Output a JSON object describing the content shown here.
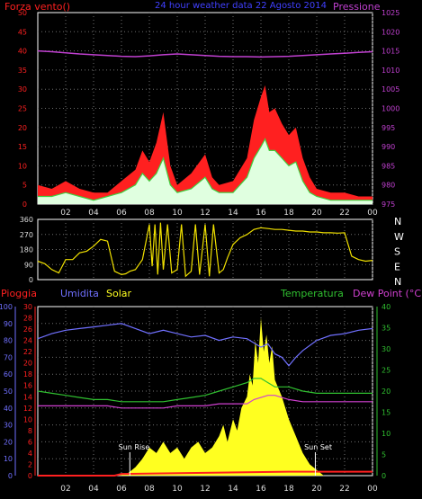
{
  "header": {
    "title": "24 hour weather data  22 Agosto 2014",
    "left_label": "Forza vento()",
    "right_label": "Pressione"
  },
  "colors": {
    "background": "#000000",
    "grid": "#6f6f6f",
    "wind_gust": "#ff2020",
    "wind_avg": "#40d040",
    "wind_light": "#e0ffe0",
    "pressure": "#c040d0",
    "direction": "#f0e000",
    "rain": "#ff2020",
    "humidity": "#7070ff",
    "solar": "#ffff20",
    "temperature": "#30c030",
    "dewpoint": "#d040d0",
    "title": "#4040ff"
  },
  "labels": {
    "pioggia": "Pioggia",
    "umidita": "Umidita",
    "solar": "Solar",
    "temperatura": "Temperatura",
    "dew_point": "Dew Point (°C)",
    "sun_rise": "Sun Rise",
    "sun_set": "Sun Set"
  },
  "x_ticks": [
    "02",
    "04",
    "06",
    "08",
    "10",
    "12",
    "14",
    "16",
    "18",
    "20",
    "22",
    "00"
  ],
  "chart_data": [
    {
      "type": "line",
      "panel": "wind-pressure",
      "xlim": [
        0,
        24
      ],
      "left_axis": {
        "label": "Forza vento()",
        "ylim": [
          0,
          50
        ],
        "ticks": [
          0,
          5,
          10,
          15,
          20,
          25,
          30,
          35,
          40,
          45,
          50
        ]
      },
      "right_axis": {
        "label": "Pressione",
        "ylim": [
          975,
          1025
        ],
        "ticks": [
          975,
          980,
          985,
          990,
          995,
          1000,
          1005,
          1010,
          1015,
          1020,
          1025
        ]
      },
      "series": [
        {
          "name": "Pressione",
          "axis": "right",
          "x": [
            0,
            1,
            2,
            3,
            4,
            5,
            6,
            7,
            8,
            9,
            10,
            11,
            12,
            13,
            14,
            15,
            16,
            17,
            18,
            19,
            20,
            21,
            22,
            23,
            24
          ],
          "y": [
            1015,
            1014.8,
            1014.5,
            1014.2,
            1014,
            1013.8,
            1013.6,
            1013.5,
            1013.7,
            1014,
            1014.2,
            1014,
            1013.8,
            1013.6,
            1013.5,
            1013.5,
            1013.4,
            1013.5,
            1013.6,
            1013.8,
            1014,
            1014.2,
            1014.4,
            1014.6,
            1014.8
          ]
        },
        {
          "name": "gust",
          "axis": "left",
          "x": [
            0,
            1,
            2,
            3,
            4,
            5,
            6,
            7,
            7.5,
            8,
            8.5,
            9,
            9.5,
            10,
            11,
            12,
            12.5,
            13,
            14,
            15,
            15.5,
            16,
            16.3,
            16.6,
            17,
            17.5,
            18,
            18.5,
            19,
            19.5,
            20,
            21,
            22,
            23,
            24
          ],
          "y": [
            5,
            4,
            6,
            4,
            3,
            3,
            6,
            9,
            14,
            11,
            16,
            24,
            10,
            5,
            8,
            13,
            7,
            5,
            6,
            12,
            22,
            28,
            31,
            24,
            25,
            21,
            18,
            20,
            12,
            7,
            4,
            3,
            3,
            2,
            2
          ]
        },
        {
          "name": "average",
          "axis": "left",
          "x": [
            0,
            1,
            2,
            3,
            4,
            5,
            6,
            7,
            7.5,
            8,
            8.5,
            9,
            9.5,
            10,
            11,
            12,
            12.5,
            13,
            14,
            15,
            15.5,
            16,
            16.3,
            16.6,
            17,
            17.5,
            18,
            18.5,
            19,
            19.5,
            20,
            21,
            22,
            23,
            24
          ],
          "y": [
            2,
            2,
            3,
            2,
            1,
            2,
            3,
            5,
            8,
            6,
            8,
            12,
            5,
            3,
            4,
            7,
            4,
            3,
            3,
            7,
            12,
            15,
            17,
            14,
            14,
            12,
            10,
            11,
            6,
            3,
            2,
            1,
            1,
            1,
            1
          ]
        }
      ]
    },
    {
      "type": "line",
      "panel": "wind-direction",
      "xlim": [
        0,
        24
      ],
      "left_axis": {
        "ylim": [
          0,
          360
        ],
        "ticks": [
          0,
          90,
          180,
          270,
          360
        ]
      },
      "right_axis": {
        "ticks": [
          "N",
          "E",
          "S",
          "W",
          "N"
        ]
      },
      "series": [
        {
          "name": "direzione",
          "x": [
            0,
            0.5,
            1,
            1.5,
            2,
            2.5,
            3,
            3.5,
            4,
            4.5,
            5,
            5.5,
            6,
            6.3,
            6.6,
            7,
            7.5,
            8,
            8.2,
            8.4,
            8.6,
            8.8,
            9,
            9.3,
            9.6,
            10,
            10.3,
            10.6,
            11,
            11.3,
            11.6,
            12,
            12.3,
            12.6,
            13,
            13.3,
            13.6,
            14,
            14.5,
            15,
            15.5,
            16,
            16.5,
            17,
            17.5,
            18,
            18.5,
            19,
            19.5,
            20,
            20.5,
            21,
            21.5,
            22,
            22.5,
            23,
            23.5,
            24
          ],
          "y": [
            110,
            95,
            60,
            40,
            120,
            120,
            160,
            170,
            200,
            240,
            230,
            50,
            30,
            35,
            50,
            60,
            120,
            330,
            80,
            330,
            30,
            340,
            60,
            330,
            40,
            60,
            330,
            20,
            50,
            330,
            30,
            330,
            20,
            330,
            40,
            60,
            130,
            210,
            250,
            270,
            300,
            310,
            305,
            300,
            300,
            295,
            290,
            290,
            285,
            285,
            280,
            280,
            278,
            280,
            140,
            120,
            110,
            115
          ]
        }
      ]
    },
    {
      "type": "area",
      "panel": "rain-humidity-solar-temperature",
      "xlim": [
        0,
        24
      ],
      "axes": {
        "humidity": {
          "label": "Umidita",
          "ylim": [
            0,
            100
          ],
          "ticks": [
            0,
            10,
            20,
            30,
            40,
            50,
            60,
            70,
            80,
            90,
            100
          ]
        },
        "rain": {
          "label": "Pioggia",
          "ylim": [
            0,
            30
          ],
          "ticks": [
            0,
            2,
            4,
            6,
            8,
            10,
            12,
            14,
            16,
            18,
            20,
            22,
            24,
            26,
            28,
            30
          ]
        },
        "temperature": {
          "label": "Temperatura",
          "ylim": [
            0,
            40
          ],
          "ticks": [
            0,
            5,
            10,
            15,
            20,
            25,
            30,
            35,
            40
          ]
        }
      },
      "series": [
        {
          "name": "Umidita",
          "axis": "humidity",
          "x": [
            0,
            1,
            2,
            3,
            4,
            5,
            6,
            7,
            8,
            9,
            10,
            11,
            12,
            13,
            14,
            15,
            16,
            16.5,
            17,
            17.5,
            18,
            18.5,
            19,
            20,
            21,
            22,
            23,
            24
          ],
          "y": [
            81,
            84,
            86,
            87,
            88,
            89,
            90,
            87,
            84,
            86,
            84,
            82,
            83,
            80,
            82,
            81,
            76,
            78,
            72,
            70,
            65,
            70,
            74,
            80,
            83,
            84,
            86,
            87
          ]
        },
        {
          "name": "Temperatura",
          "axis": "temperature",
          "x": [
            0,
            1,
            2,
            3,
            4,
            5,
            6,
            7,
            8,
            9,
            10,
            11,
            12,
            13,
            14,
            15,
            15.5,
            16,
            16.5,
            17,
            18,
            19,
            20,
            21,
            22,
            23,
            24
          ],
          "y": [
            20,
            19.5,
            19,
            18.5,
            18,
            18,
            17.5,
            17.5,
            17.5,
            17.5,
            18,
            18.5,
            19,
            20,
            21,
            22,
            23,
            23,
            22,
            21,
            21,
            20,
            19.5,
            19.5,
            19.5,
            19.5,
            19.5
          ]
        },
        {
          "name": "Dew Point",
          "axis": "temperature",
          "x": [
            0,
            1,
            2,
            3,
            4,
            5,
            6,
            7,
            8,
            9,
            10,
            11,
            12,
            13,
            14,
            15,
            15.5,
            16,
            16.5,
            17,
            18,
            19,
            20,
            21,
            22,
            23,
            24
          ],
          "y": [
            16.5,
            16.5,
            16.5,
            16.5,
            16.5,
            16.5,
            16,
            16,
            16,
            16,
            16.5,
            16.5,
            16.5,
            17,
            17,
            17,
            18,
            18.5,
            19,
            19,
            18,
            17.5,
            17.5,
            17.5,
            17.5,
            17.5,
            17.5
          ]
        },
        {
          "name": "Solar",
          "axis": "rain",
          "x": [
            0,
            5.8,
            6.5,
            7,
            7.5,
            8,
            8.5,
            9,
            9.5,
            10,
            10.5,
            11,
            11.5,
            12,
            12.5,
            13,
            13.3,
            13.6,
            14,
            14.3,
            14.6,
            15,
            15.2,
            15.4,
            15.6,
            15.8,
            16,
            16.2,
            16.4,
            16.6,
            16.8,
            17,
            17.5,
            18,
            18.5,
            19,
            19.5,
            20,
            20.5,
            24
          ],
          "y": [
            0,
            0,
            0.5,
            1.5,
            3,
            5,
            4,
            6,
            4,
            5,
            3,
            5,
            6,
            4,
            5,
            7,
            9,
            6,
            10,
            8,
            12,
            14,
            18,
            16,
            24,
            20,
            28,
            22,
            25,
            20,
            23,
            17,
            14,
            10,
            7,
            4,
            2,
            1,
            0,
            0
          ]
        },
        {
          "name": "Pioggia",
          "axis": "rain",
          "x": [
            0,
            5.5,
            6,
            18,
            19,
            24
          ],
          "y": [
            0,
            0,
            0.3,
            0.7,
            0.7,
            0.7
          ]
        }
      ]
    }
  ]
}
